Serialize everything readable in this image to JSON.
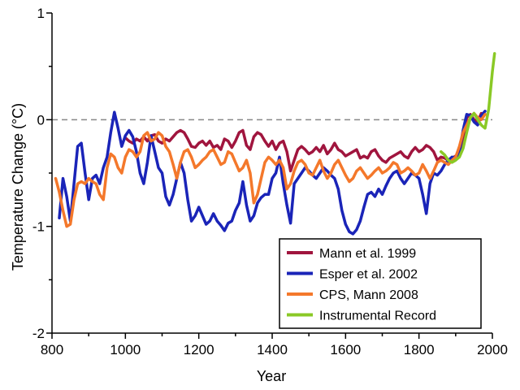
{
  "chart_data": {
    "type": "line",
    "title": "",
    "xlabel": "Year",
    "ylabel": "Temperature Change (°C)",
    "xlim": [
      800,
      2000
    ],
    "ylim": [
      -2,
      1
    ],
    "x_ticks": [
      "800",
      "1000",
      "1200",
      "1400",
      "1600",
      "1800",
      "2000"
    ],
    "y_ticks": [
      "1",
      "0",
      "-1",
      "-2"
    ],
    "zero_reference_line": true,
    "grid": false,
    "legend_position": "bottom-right",
    "series": [
      {
        "name": "Mann et al. 1999",
        "color": "#a0153e",
        "x": [
          1000,
          1010,
          1020,
          1030,
          1040,
          1050,
          1060,
          1070,
          1080,
          1090,
          1100,
          1110,
          1120,
          1130,
          1140,
          1150,
          1160,
          1170,
          1180,
          1190,
          1200,
          1210,
          1220,
          1230,
          1240,
          1250,
          1260,
          1270,
          1280,
          1290,
          1300,
          1310,
          1320,
          1330,
          1340,
          1350,
          1360,
          1370,
          1380,
          1390,
          1400,
          1410,
          1420,
          1430,
          1440,
          1450,
          1460,
          1470,
          1480,
          1490,
          1500,
          1510,
          1520,
          1530,
          1540,
          1550,
          1560,
          1570,
          1580,
          1590,
          1600,
          1610,
          1620,
          1630,
          1640,
          1650,
          1660,
          1670,
          1680,
          1690,
          1700,
          1710,
          1720,
          1730,
          1740,
          1750,
          1760,
          1770,
          1780,
          1790,
          1800,
          1810,
          1820,
          1830,
          1840,
          1850,
          1860,
          1870,
          1880,
          1890,
          1900,
          1910,
          1920,
          1930,
          1940,
          1950,
          1960,
          1970,
          1980
        ],
        "values": [
          -0.17,
          -0.2,
          -0.22,
          -0.18,
          -0.2,
          -0.16,
          -0.2,
          -0.15,
          -0.14,
          -0.2,
          -0.22,
          -0.18,
          -0.2,
          -0.16,
          -0.12,
          -0.1,
          -0.12,
          -0.18,
          -0.25,
          -0.26,
          -0.22,
          -0.2,
          -0.24,
          -0.2,
          -0.26,
          -0.24,
          -0.28,
          -0.18,
          -0.2,
          -0.26,
          -0.2,
          -0.12,
          -0.1,
          -0.24,
          -0.28,
          -0.16,
          -0.12,
          -0.14,
          -0.2,
          -0.25,
          -0.2,
          -0.28,
          -0.22,
          -0.2,
          -0.3,
          -0.48,
          -0.38,
          -0.28,
          -0.25,
          -0.28,
          -0.32,
          -0.3,
          -0.26,
          -0.3,
          -0.24,
          -0.32,
          -0.28,
          -0.22,
          -0.28,
          -0.3,
          -0.34,
          -0.32,
          -0.3,
          -0.28,
          -0.36,
          -0.34,
          -0.36,
          -0.3,
          -0.28,
          -0.34,
          -0.38,
          -0.4,
          -0.36,
          -0.34,
          -0.32,
          -0.3,
          -0.34,
          -0.36,
          -0.3,
          -0.26,
          -0.3,
          -0.28,
          -0.24,
          -0.26,
          -0.3,
          -0.38,
          -0.35,
          -0.36,
          -0.38,
          -0.36,
          -0.34,
          -0.3,
          -0.2,
          0.02,
          0.05,
          0.0,
          -0.02,
          0.06,
          0.05
        ]
      },
      {
        "name": "Esper et al. 2002",
        "color": "#1a24b8",
        "x": [
          820,
          830,
          840,
          850,
          860,
          870,
          880,
          890,
          900,
          910,
          920,
          930,
          940,
          950,
          960,
          970,
          980,
          990,
          1000,
          1010,
          1020,
          1030,
          1040,
          1050,
          1060,
          1070,
          1080,
          1090,
          1100,
          1110,
          1120,
          1130,
          1140,
          1150,
          1160,
          1170,
          1180,
          1190,
          1200,
          1210,
          1220,
          1230,
          1240,
          1250,
          1260,
          1270,
          1280,
          1290,
          1300,
          1310,
          1320,
          1330,
          1340,
          1350,
          1360,
          1370,
          1380,
          1390,
          1400,
          1410,
          1420,
          1430,
          1440,
          1450,
          1460,
          1470,
          1480,
          1490,
          1500,
          1510,
          1520,
          1530,
          1540,
          1550,
          1560,
          1570,
          1580,
          1590,
          1600,
          1610,
          1620,
          1630,
          1640,
          1650,
          1660,
          1670,
          1680,
          1690,
          1700,
          1710,
          1720,
          1730,
          1740,
          1750,
          1760,
          1770,
          1780,
          1790,
          1800,
          1810,
          1820,
          1830,
          1840,
          1850,
          1860,
          1870,
          1880,
          1890,
          1900,
          1910,
          1920,
          1930,
          1940,
          1950,
          1960,
          1970,
          1980
        ],
        "values": [
          -0.92,
          -0.55,
          -0.72,
          -0.95,
          -0.6,
          -0.25,
          -0.22,
          -0.5,
          -0.75,
          -0.55,
          -0.52,
          -0.6,
          -0.45,
          -0.35,
          -0.12,
          0.07,
          -0.08,
          -0.25,
          -0.15,
          -0.1,
          -0.16,
          -0.3,
          -0.5,
          -0.6,
          -0.4,
          -0.15,
          -0.3,
          -0.45,
          -0.5,
          -0.72,
          -0.8,
          -0.7,
          -0.55,
          -0.4,
          -0.5,
          -0.75,
          -0.95,
          -0.9,
          -0.82,
          -0.9,
          -0.98,
          -0.95,
          -0.88,
          -0.95,
          -0.99,
          -1.04,
          -0.97,
          -0.95,
          -0.85,
          -0.78,
          -0.58,
          -0.8,
          -0.95,
          -0.9,
          -0.78,
          -0.73,
          -0.7,
          -0.7,
          -0.55,
          -0.5,
          -0.35,
          -0.6,
          -0.8,
          -0.97,
          -0.6,
          -0.55,
          -0.5,
          -0.45,
          -0.48,
          -0.52,
          -0.55,
          -0.5,
          -0.45,
          -0.48,
          -0.52,
          -0.55,
          -0.65,
          -0.85,
          -0.98,
          -1.05,
          -1.07,
          -1.03,
          -0.95,
          -0.82,
          -0.7,
          -0.68,
          -0.72,
          -0.65,
          -0.7,
          -0.62,
          -0.55,
          -0.5,
          -0.48,
          -0.55,
          -0.6,
          -0.55,
          -0.5,
          -0.52,
          -0.55,
          -0.7,
          -0.88,
          -0.6,
          -0.5,
          -0.52,
          -0.48,
          -0.42,
          -0.38,
          -0.35,
          -0.36,
          -0.3,
          -0.1,
          0.05,
          0.04,
          -0.02,
          -0.05,
          0.04,
          0.08
        ]
      },
      {
        "name": "CPS, Mann 2008",
        "color": "#f4782b",
        "x": [
          810,
          820,
          830,
          840,
          850,
          860,
          870,
          880,
          890,
          900,
          910,
          920,
          930,
          940,
          950,
          960,
          970,
          980,
          990,
          1000,
          1010,
          1020,
          1030,
          1040,
          1050,
          1060,
          1070,
          1080,
          1090,
          1100,
          1110,
          1120,
          1130,
          1140,
          1150,
          1160,
          1170,
          1180,
          1190,
          1200,
          1210,
          1220,
          1230,
          1240,
          1250,
          1260,
          1270,
          1280,
          1290,
          1300,
          1310,
          1320,
          1330,
          1340,
          1350,
          1360,
          1370,
          1380,
          1390,
          1400,
          1410,
          1420,
          1430,
          1440,
          1450,
          1460,
          1470,
          1480,
          1490,
          1500,
          1510,
          1520,
          1530,
          1540,
          1550,
          1560,
          1570,
          1580,
          1590,
          1600,
          1610,
          1620,
          1630,
          1640,
          1650,
          1660,
          1670,
          1680,
          1690,
          1700,
          1710,
          1720,
          1730,
          1740,
          1750,
          1760,
          1770,
          1780,
          1790,
          1800,
          1810,
          1820,
          1830,
          1840,
          1850,
          1860,
          1870,
          1880,
          1890,
          1900,
          1910,
          1920,
          1930,
          1940,
          1950,
          1960,
          1970,
          1980
        ],
        "values": [
          -0.55,
          -0.68,
          -0.85,
          -1.0,
          -0.98,
          -0.75,
          -0.6,
          -0.58,
          -0.6,
          -0.55,
          -0.58,
          -0.6,
          -0.7,
          -0.75,
          -0.45,
          -0.32,
          -0.35,
          -0.45,
          -0.5,
          -0.35,
          -0.28,
          -0.3,
          -0.35,
          -0.3,
          -0.15,
          -0.12,
          -0.2,
          -0.18,
          -0.12,
          -0.15,
          -0.25,
          -0.3,
          -0.42,
          -0.55,
          -0.4,
          -0.3,
          -0.28,
          -0.35,
          -0.45,
          -0.42,
          -0.38,
          -0.35,
          -0.3,
          -0.28,
          -0.35,
          -0.42,
          -0.4,
          -0.3,
          -0.32,
          -0.4,
          -0.48,
          -0.45,
          -0.38,
          -0.5,
          -0.78,
          -0.7,
          -0.55,
          -0.4,
          -0.35,
          -0.38,
          -0.42,
          -0.38,
          -0.45,
          -0.65,
          -0.6,
          -0.48,
          -0.4,
          -0.38,
          -0.42,
          -0.5,
          -0.52,
          -0.45,
          -0.38,
          -0.48,
          -0.55,
          -0.5,
          -0.42,
          -0.38,
          -0.45,
          -0.52,
          -0.58,
          -0.55,
          -0.48,
          -0.45,
          -0.5,
          -0.55,
          -0.52,
          -0.48,
          -0.45,
          -0.5,
          -0.48,
          -0.45,
          -0.4,
          -0.42,
          -0.5,
          -0.48,
          -0.45,
          -0.48,
          -0.52,
          -0.5,
          -0.42,
          -0.48,
          -0.55,
          -0.48,
          -0.4,
          -0.38,
          -0.4,
          -0.42,
          -0.38,
          -0.35,
          -0.25,
          -0.12,
          -0.05,
          0.02,
          0.06,
          0.02,
          0.0,
          0.05
        ]
      },
      {
        "name": "Instrumental Record",
        "color": "#8ac926",
        "x": [
          1860,
          1870,
          1880,
          1890,
          1900,
          1910,
          1920,
          1930,
          1940,
          1950,
          1960,
          1970,
          1980,
          1990,
          2000,
          2006
        ],
        "values": [
          -0.3,
          -0.33,
          -0.38,
          -0.4,
          -0.38,
          -0.35,
          -0.27,
          -0.12,
          0.02,
          0.06,
          0.0,
          -0.05,
          -0.08,
          0.1,
          0.45,
          0.62
        ]
      }
    ]
  }
}
